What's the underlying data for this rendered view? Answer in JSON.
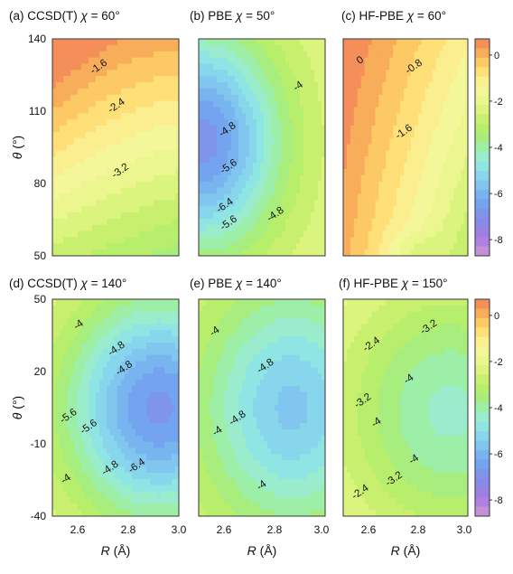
{
  "chart_data": {
    "type": "heatmap",
    "color_scale": {
      "levels": [
        -8.4,
        -8,
        -7.6,
        -7.2,
        -6.8,
        -6.4,
        -6,
        -5.6,
        -5.2,
        -4.8,
        -4.4,
        -4,
        -3.6,
        -3.2,
        -2.8,
        -2.4,
        -2,
        -1.6,
        -1.2,
        -0.8,
        -0.4,
        0,
        0.4
      ],
      "colors": [
        "#c490d6",
        "#b07fdf",
        "#9c80e3",
        "#8a88e8",
        "#7f95eb",
        "#74a3ef",
        "#78b4ef",
        "#80c6ee",
        "#88d6ec",
        "#8fe5e3",
        "#9aeccc",
        "#9defa8",
        "#a7ee7e",
        "#b7ef6c",
        "#c8f06e",
        "#dbf47e",
        "#ebf78e",
        "#f4f69a",
        "#fbee8f",
        "#fedf78",
        "#fcc965",
        "#f8ad5a",
        "#f48f5a"
      ],
      "ticks": [
        0,
        -2,
        -4,
        -6,
        -8
      ]
    },
    "panels": [
      {
        "label": "(a)",
        "method": "CCSD(T)",
        "chi": "60°",
        "contour_labels": [
          "-1.6",
          "-2.4",
          "-3.2"
        ]
      },
      {
        "label": "(b)",
        "method": "PBE",
        "chi": "50°",
        "contour_labels": [
          "-4",
          "-4.8",
          "-5.6",
          "-6.4",
          "-5.6",
          "-4.8"
        ]
      },
      {
        "label": "(c)",
        "method": "HF-PBE",
        "chi": "60°",
        "contour_labels": [
          "0",
          "-0.8",
          "-1.6"
        ]
      },
      {
        "label": "(d)",
        "method": "CCSD(T)",
        "chi": "140°",
        "contour_labels": [
          "-4",
          "-4.8",
          "-5.6",
          "-4.8",
          "-5.6",
          "-6.4",
          "-4",
          "-4.8"
        ]
      },
      {
        "label": "(e)",
        "method": "PBE",
        "chi": "140°",
        "contour_labels": [
          "-4",
          "-4.8",
          "-4.8",
          "-4",
          "-4"
        ]
      },
      {
        "label": "(f)",
        "method": "HF-PBE",
        "chi": "150°",
        "contour_labels": [
          "-2.4",
          "-3.2",
          "-3.2",
          "-4",
          "-4",
          "-4",
          "-2.4",
          "-3.2"
        ]
      }
    ],
    "x_axis": {
      "label_symbol": "R",
      "label_unit": "(Å)",
      "range": [
        2.5,
        3.0
      ],
      "ticks": [
        "2.6",
        "2.8",
        "3.0"
      ]
    },
    "y_axis_top": {
      "label_symbol": "θ",
      "label_unit": "(°)",
      "range": [
        50,
        140
      ],
      "ticks": [
        "140",
        "110",
        "80",
        "50"
      ]
    },
    "y_axis_bottom": {
      "label_symbol": "θ",
      "label_unit": "(°)",
      "range": [
        -40,
        50
      ],
      "ticks": [
        "50",
        "20",
        "-10",
        "-40"
      ]
    }
  }
}
